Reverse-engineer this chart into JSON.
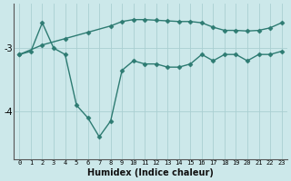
{
  "xlabel": "Humidex (Indice chaleur)",
  "ylabel": "",
  "bg_color": "#cce8ea",
  "line_color": "#2d7b72",
  "grid_color": "#aacfd2",
  "xlim": [
    -0.5,
    23.5
  ],
  "ylim": [
    -4.75,
    -2.3
  ],
  "yticks": [
    -4,
    -3
  ],
  "xticks": [
    0,
    1,
    2,
    3,
    4,
    5,
    6,
    7,
    8,
    9,
    10,
    11,
    12,
    13,
    14,
    15,
    16,
    17,
    18,
    19,
    20,
    21,
    22,
    23
  ],
  "line1_x": [
    0,
    1,
    2,
    3,
    4,
    5,
    6,
    7,
    8,
    9,
    10,
    11,
    12,
    13,
    14,
    15,
    16,
    17,
    18,
    19,
    20,
    21,
    22,
    23
  ],
  "line1_y": [
    -3.1,
    -3.05,
    -2.6,
    -3.0,
    -3.1,
    -3.9,
    -4.1,
    -4.4,
    -4.15,
    -3.35,
    -3.2,
    -3.25,
    -3.25,
    -3.3,
    -3.3,
    -3.25,
    -3.1,
    -3.2,
    -3.1,
    -3.1,
    -3.2,
    -3.1,
    -3.1,
    -3.05
  ],
  "line2_x": [
    0,
    2,
    4,
    6,
    8,
    9,
    10,
    11,
    12,
    13,
    14,
    15,
    16,
    17,
    18,
    19,
    20,
    21,
    22,
    23
  ],
  "line2_y": [
    -3.1,
    -2.95,
    -2.85,
    -2.75,
    -2.65,
    -2.58,
    -2.55,
    -2.55,
    -2.56,
    -2.57,
    -2.58,
    -2.58,
    -2.6,
    -2.67,
    -2.72,
    -2.72,
    -2.73,
    -2.72,
    -2.68,
    -2.6
  ]
}
